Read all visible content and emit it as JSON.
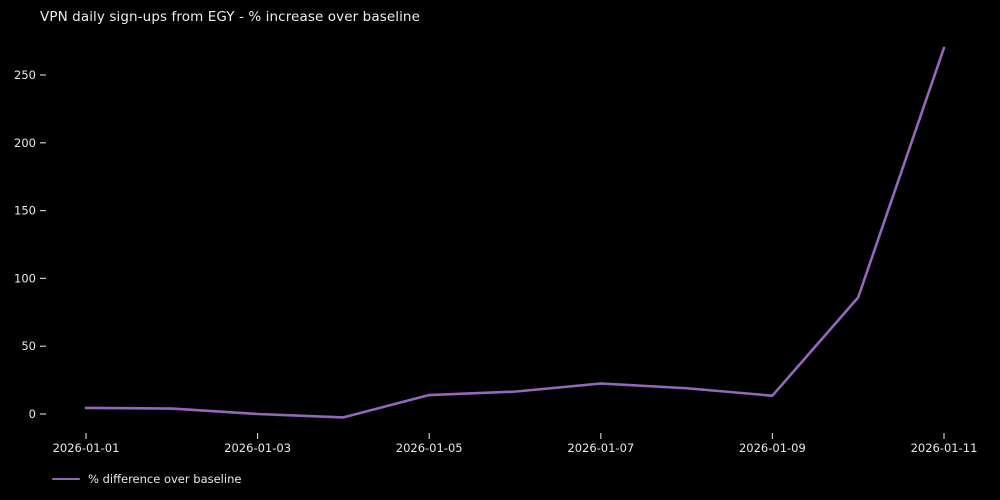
{
  "chart_data": {
    "type": "line",
    "title": "VPN daily sign-ups from EGY - % increase over baseline",
    "x": [
      "2026-01-01",
      "2026-01-02",
      "2026-01-03",
      "2026-01-04",
      "2026-01-05",
      "2026-01-06",
      "2026-01-07",
      "2026-01-08",
      "2026-01-09",
      "2026-01-10",
      "2026-01-11"
    ],
    "series": [
      {
        "name": "% difference over baseline",
        "color": "#9467bd",
        "values": [
          4.5,
          4,
          0,
          -2.5,
          14,
          16.5,
          22.5,
          19,
          13.5,
          86,
          270
        ]
      }
    ],
    "xlabel": "",
    "ylabel": "",
    "yticks": [
      0,
      50,
      100,
      150,
      200,
      250
    ],
    "xtick_labels": [
      "2026-01-01",
      "2026-01-03",
      "2026-01-05",
      "2026-01-07",
      "2026-01-09",
      "2026-01-11"
    ],
    "ylim": [
      -15,
      276
    ],
    "grid": false,
    "legend_position": "lower-left",
    "colors": {
      "background": "#000000",
      "text": "#e8e8e8",
      "tick": "#c8c8c8"
    }
  }
}
